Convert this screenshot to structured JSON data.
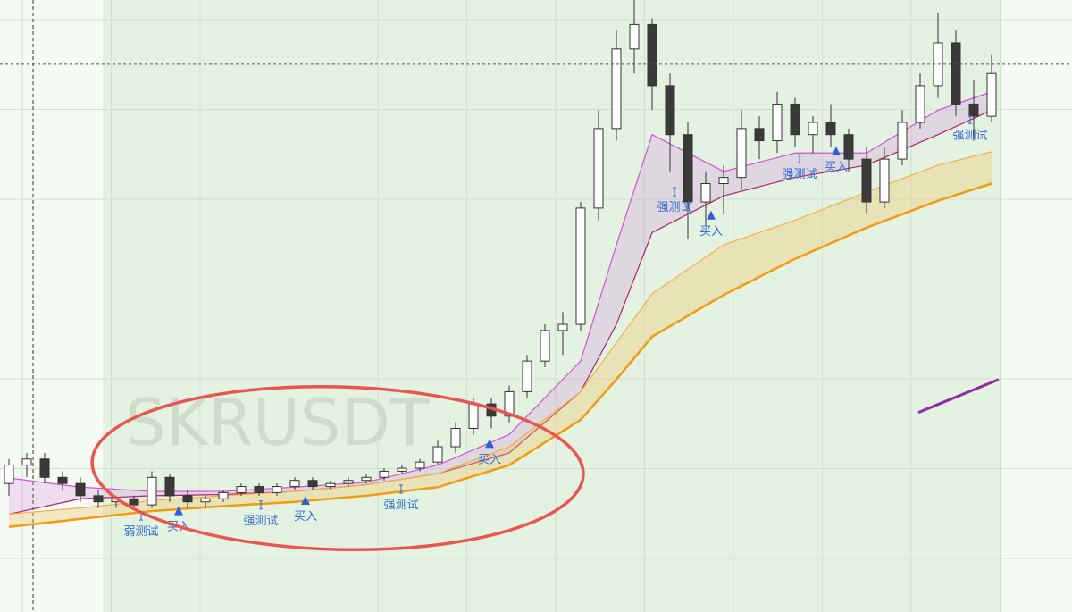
{
  "chart_data": {
    "type": "candlestick",
    "watermark": "SKRUSDT",
    "xlim": [
      -0.5,
      59.5
    ],
    "ylim": [
      0,
      100
    ],
    "price_line": 89.5,
    "up_color": "#ffffff",
    "down_color": "#3a3a3a",
    "open": [
      21,
      24,
      25,
      22,
      21,
      19,
      18,
      18.5,
      17.5,
      22,
      19,
      18,
      18.5,
      19.5,
      20.5,
      19.5,
      20.5,
      21.5,
      20.5,
      21,
      21.5,
      22,
      23,
      23.5,
      24.5,
      27,
      30,
      34,
      32,
      36,
      41,
      46,
      47,
      66,
      79,
      92,
      96,
      86,
      78,
      67,
      70,
      71,
      79,
      77,
      83,
      78,
      80,
      78,
      74,
      67,
      74,
      80,
      86,
      93,
      83,
      81
    ],
    "high": [
      25,
      26,
      26,
      23,
      22,
      20,
      19,
      19,
      23,
      22.5,
      20,
      19,
      20,
      21,
      21,
      21,
      22,
      22,
      21.5,
      22,
      22.5,
      23.5,
      24,
      25,
      28,
      31,
      35,
      35,
      37,
      42,
      47,
      49,
      67,
      82,
      95,
      100,
      97,
      88,
      80,
      72,
      73,
      82,
      81,
      85,
      84,
      81,
      83,
      79,
      76,
      76,
      82,
      88,
      98,
      95,
      87,
      91
    ],
    "low": [
      19,
      22,
      21,
      20,
      18,
      17,
      17,
      17,
      17,
      18,
      17,
      17,
      18,
      19,
      19,
      19,
      20,
      20,
      20,
      20.5,
      21,
      21.5,
      22.5,
      23,
      24,
      26,
      29,
      30,
      31,
      35,
      40,
      42,
      46,
      64,
      77,
      88,
      82,
      72,
      61,
      63,
      65,
      69,
      74,
      75,
      76,
      75,
      76,
      72,
      65,
      66,
      73,
      79,
      84,
      81,
      77,
      80
    ],
    "close": [
      24,
      25,
      22,
      21,
      19,
      18,
      18.5,
      17.5,
      22,
      19,
      18,
      18.5,
      19.5,
      20.5,
      19.5,
      20.5,
      21.5,
      20.5,
      21,
      21.5,
      22,
      23,
      23.5,
      24.5,
      27,
      30,
      34,
      32,
      36,
      41,
      46,
      47,
      66,
      79,
      92,
      96,
      86,
      78,
      67,
      70,
      71,
      79,
      77,
      83,
      78,
      80,
      78,
      74,
      67,
      74,
      80,
      86,
      93,
      83,
      81,
      88
    ],
    "bands": [
      {
        "fill": "rgba(205,120,215,0.22)",
        "x": [
          0,
          4,
          8,
          12,
          16,
          20,
          24,
          28,
          32,
          34,
          36,
          40,
          44,
          48,
          52,
          55
        ],
        "upper": {
          "color": "#d84fd8",
          "width": 1.2,
          "values": [
            21.9,
            20.4,
            19.7,
            19.7,
            20.4,
            21.2,
            24,
            29,
            41,
            60,
            78,
            72,
            75,
            75,
            82,
            85
          ]
        },
        "lower": {
          "color": "#b0206e",
          "width": 1.2,
          "values": [
            16,
            18.5,
            19,
            19.2,
            19.7,
            20.8,
            22.6,
            26,
            36,
            47,
            62,
            68,
            71,
            73,
            78,
            82
          ]
        }
      },
      {
        "fill": "rgba(240,195,90,0.32)",
        "x": [
          0,
          4,
          8,
          12,
          16,
          20,
          24,
          28,
          32,
          34,
          36,
          40,
          44,
          48,
          52,
          55
        ],
        "upper": {
          "color": "#f2b04a",
          "width": 1.2,
          "values": [
            16,
            17,
            18.2,
            19,
            19.7,
            20.8,
            22.6,
            27,
            36,
            44,
            52,
            60,
            64,
            68.6,
            73,
            75.2
          ]
        },
        "lower": {
          "color": "#f39a10",
          "width": 2.5,
          "values": [
            13.9,
            15.2,
            16.5,
            17.3,
            18,
            19,
            20.4,
            24,
            31.4,
            38,
            45,
            51.8,
            57.7,
            62.8,
            67.2,
            70
          ]
        }
      }
    ],
    "lines": [
      {
        "color": "#8e2aa8",
        "x": [
          50.9,
          55.4
        ],
        "values": [
          32.6,
          38
        ]
      }
    ],
    "annotations": [
      {
        "label": "弱测试",
        "x": 7.4,
        "y": 15.6,
        "marker": "tick"
      },
      {
        "label": "买入",
        "x": 9.5,
        "y": 16.4,
        "marker": "triangle"
      },
      {
        "label": "强测试",
        "x": 14.1,
        "y": 17.4,
        "marker": "tick"
      },
      {
        "label": "买入",
        "x": 16.6,
        "y": 18.1,
        "marker": "triangle"
      },
      {
        "label": "强测试",
        "x": 21.95,
        "y": 20,
        "marker": "tick"
      },
      {
        "label": "买入",
        "x": 26.9,
        "y": 27.4,
        "marker": "triangle"
      },
      {
        "label": "强测试",
        "x": 37.25,
        "y": 68.6,
        "marker": "tick"
      },
      {
        "label": "买入",
        "x": 39.3,
        "y": 64.7,
        "marker": "triangle"
      },
      {
        "label": "强测试",
        "x": 44.25,
        "y": 74,
        "marker": "tick"
      },
      {
        "label": "买入",
        "x": 46.3,
        "y": 75.2,
        "marker": "triangle"
      },
      {
        "label": "强测试",
        "x": 53.8,
        "y": 80.4,
        "marker": "tick"
      }
    ]
  }
}
